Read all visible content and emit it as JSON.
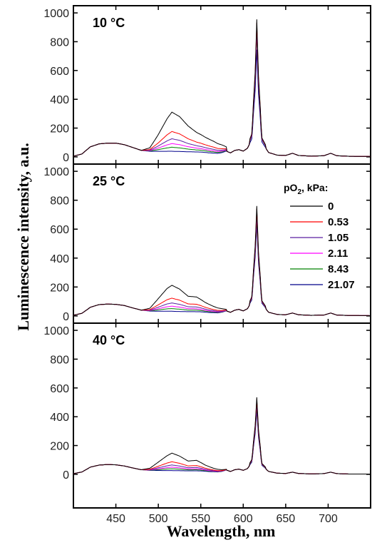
{
  "chart_data": {
    "type": "line",
    "xlabel": "Wavelength, nm",
    "ylabel": "Luminescence intensity, a.u.",
    "xlim": [
      400,
      750
    ],
    "ylim": [
      -50,
      1050
    ],
    "x_ticks": [
      450,
      500,
      550,
      600,
      650,
      700
    ],
    "y_ticks": [
      0,
      200,
      400,
      600,
      800,
      1000
    ],
    "legend": {
      "title_main": "pO",
      "title_sub": "2",
      "title_rest": ", kPa:",
      "placement": "right of middle panel"
    },
    "series": [
      {
        "name": "0",
        "color": "#000000"
      },
      {
        "name": "0.53",
        "color": "#ff0000"
      },
      {
        "name": "1.05",
        "color": "#5b1fa0"
      },
      {
        "name": "2.11",
        "color": "#ff00ff"
      },
      {
        "name": "8.43",
        "color": "#008000"
      },
      {
        "name": "21.07",
        "color": "#00008b"
      }
    ],
    "panels": [
      {
        "label": "10 °C",
        "base_x": [
          400,
          410,
          420,
          430,
          440,
          450,
          460,
          470,
          480,
          490,
          500,
          510,
          520,
          530,
          540,
          550,
          560,
          570,
          575,
          580,
          585,
          590,
          595,
          600,
          605,
          610,
          614,
          616,
          618,
          622,
          630,
          640,
          650,
          658,
          665,
          680,
          695,
          703,
          710,
          725,
          750
        ],
        "base_y": [
          5,
          20,
          70,
          90,
          95,
          95,
          85,
          65,
          45,
          38,
          35,
          32,
          30,
          30,
          30,
          30,
          25,
          22,
          28,
          40,
          28,
          45,
          50,
          40,
          60,
          120,
          400,
          650,
          380,
          100,
          30,
          12,
          10,
          25,
          10,
          5,
          8,
          25,
          8,
          4,
          3
        ],
        "peak_band_x": [
          480,
          490,
          500,
          510,
          516,
          525,
          535,
          545,
          555,
          565,
          575,
          580
        ],
        "peak_band_base": [
          0,
          25,
          120,
          230,
          280,
          250,
          185,
          140,
          110,
          85,
          55,
          30
        ],
        "peak_scale": [
          1.0,
          0.52,
          0.34,
          0.22,
          0.13,
          0.03
        ],
        "red_peak": [
          955,
          930,
          900,
          880,
          860,
          745
        ]
      },
      {
        "label": "25 °C",
        "base_x": [
          400,
          410,
          420,
          430,
          440,
          450,
          460,
          470,
          480,
          490,
          500,
          510,
          520,
          530,
          540,
          550,
          560,
          570,
          575,
          580,
          585,
          590,
          595,
          600,
          605,
          610,
          614,
          616,
          618,
          622,
          630,
          640,
          650,
          658,
          665,
          680,
          695,
          703,
          710,
          725,
          750
        ],
        "base_y": [
          5,
          18,
          60,
          78,
          82,
          80,
          72,
          55,
          40,
          33,
          30,
          28,
          26,
          26,
          26,
          26,
          22,
          20,
          25,
          35,
          25,
          40,
          45,
          35,
          50,
          100,
          330,
          520,
          300,
          80,
          25,
          10,
          8,
          20,
          8,
          4,
          6,
          20,
          6,
          3,
          2
        ],
        "peak_band_x": [
          480,
          490,
          500,
          510,
          516,
          525,
          535,
          545,
          555,
          565,
          575,
          580
        ],
        "peak_band_base": [
          0,
          20,
          90,
          160,
          185,
          160,
          110,
          105,
          70,
          45,
          25,
          10
        ],
        "peak_scale": [
          1.0,
          0.52,
          0.34,
          0.22,
          0.13,
          0.03
        ],
        "red_peak": [
          760,
          740,
          720,
          700,
          680,
          635
        ]
      },
      {
        "label": "40 °C",
        "base_x": [
          400,
          410,
          420,
          430,
          440,
          450,
          460,
          470,
          480,
          490,
          500,
          510,
          520,
          530,
          540,
          550,
          560,
          570,
          575,
          580,
          585,
          590,
          595,
          600,
          605,
          610,
          614,
          616,
          618,
          622,
          630,
          640,
          650,
          658,
          665,
          680,
          695,
          703,
          710,
          725,
          750
        ],
        "base_y": [
          5,
          16,
          50,
          64,
          68,
          66,
          58,
          44,
          32,
          27,
          25,
          23,
          22,
          22,
          22,
          22,
          18,
          16,
          20,
          30,
          20,
          32,
          36,
          28,
          40,
          80,
          240,
          380,
          220,
          60,
          20,
          8,
          6,
          15,
          6,
          3,
          5,
          15,
          5,
          2,
          2
        ],
        "peak_band_x": [
          480,
          490,
          500,
          510,
          516,
          525,
          535,
          545,
          555,
          565,
          575,
          580
        ],
        "peak_band_base": [
          0,
          15,
          60,
          105,
          125,
          105,
          70,
          75,
          45,
          25,
          12,
          5
        ],
        "peak_scale": [
          1.0,
          0.52,
          0.34,
          0.22,
          0.13,
          0.03
        ],
        "red_peak": [
          535,
          520,
          500,
          490,
          475,
          445
        ]
      }
    ]
  }
}
